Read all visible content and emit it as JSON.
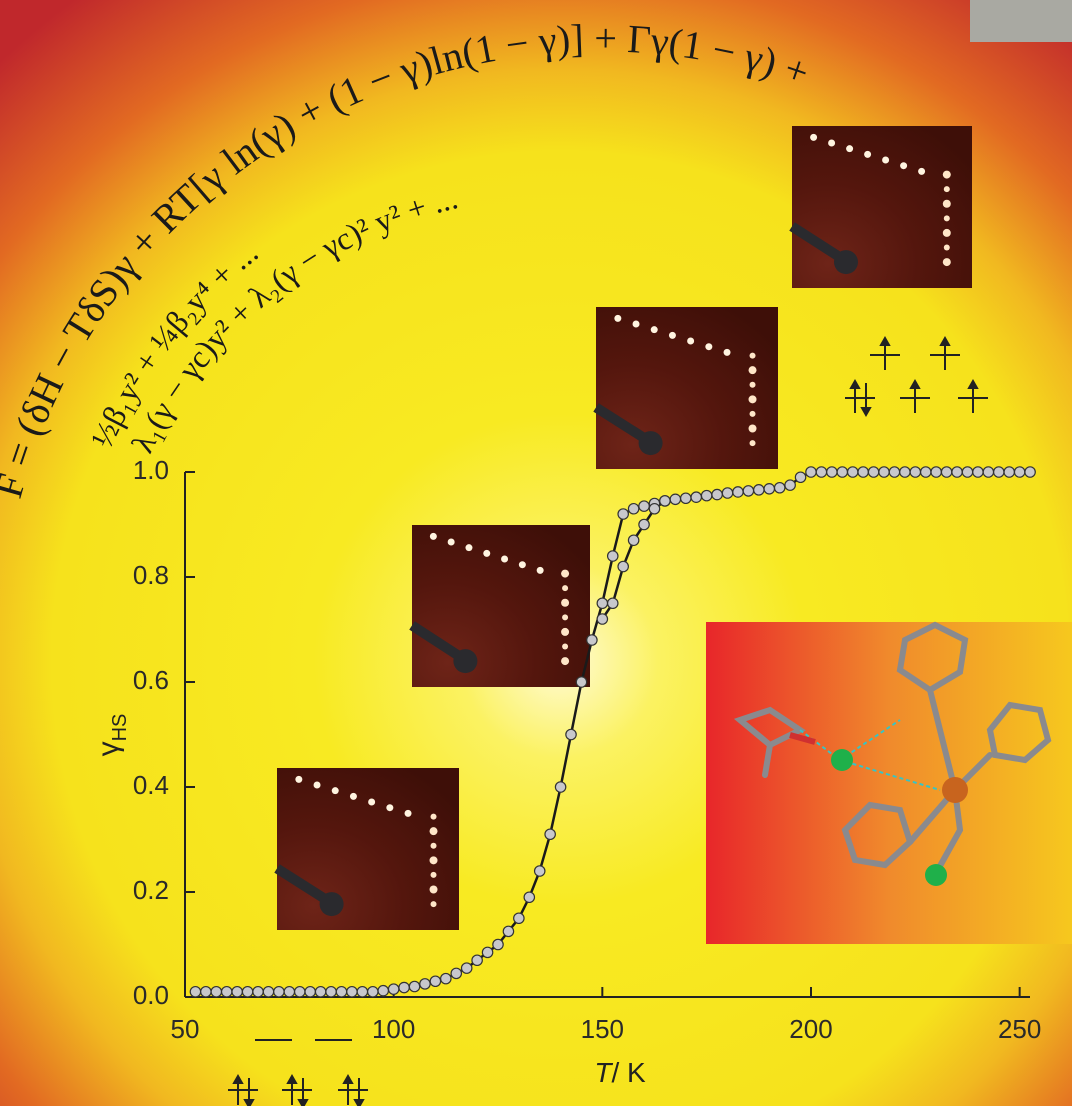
{
  "chart_data": {
    "type": "line",
    "annotations": [
      "F = (δH − TδS)γ + RT[γ ln(γ) + (1 − γ)ln(1 − γ)] + Γγ(1 − γ) +",
      "½β₁y² + ¼β₂y⁴ + ...",
      "λ₁(γ − γc)y² + λ₂(γ − γc)² y² + ..."
    ],
    "xlabel": {
      "symbol": "T",
      "unit": "/ K"
    },
    "ylabel": {
      "symbol": "γ",
      "subscript": "HS"
    },
    "xlim": [
      50,
      252
    ],
    "ylim": [
      0,
      1
    ],
    "xticks": [
      50,
      100,
      150,
      200,
      250
    ],
    "yticks": [
      {
        "value": 0,
        "label": "0.0"
      },
      0.2,
      0.4,
      0.6,
      0.8,
      {
        "value": 1,
        "label": "1.0"
      }
    ],
    "marker_color": "#c8c8cc",
    "x": [
      52.5,
      55,
      57.5,
      60,
      62.5,
      65,
      67.5,
      70,
      72.5,
      75,
      77.5,
      80,
      82.5,
      85,
      87.5,
      90,
      92.5,
      95,
      97.5,
      100,
      102.5,
      105,
      107.5,
      110,
      112.5,
      115,
      117.5,
      120,
      122.5,
      125,
      127.5,
      130,
      132.5,
      135,
      137.5,
      140,
      142.5,
      145,
      147.5,
      150,
      152.5,
      155,
      157.5,
      160,
      162.5,
      165,
      167.5,
      170,
      172.5,
      175,
      177.5,
      180,
      182.5,
      185,
      187.5,
      190,
      192.5,
      195,
      197.5,
      200,
      202.5,
      205,
      207.5,
      210,
      212.5,
      215,
      217.5,
      220,
      222.5,
      225,
      227.5,
      230,
      232.5,
      235,
      237.5,
      240,
      242.5,
      245,
      247.5,
      250,
      252.5
    ],
    "series": [
      {
        "color": "#1a1a1a",
        "values": [
          0.01,
          0.01,
          0.01,
          0.01,
          0.01,
          0.01,
          0.01,
          0.01,
          0.01,
          0.01,
          0.01,
          0.01,
          0.01,
          0.01,
          0.01,
          0.01,
          0.01,
          0.01,
          0.012,
          0.015,
          0.018,
          0.02,
          0.025,
          0.03,
          0.035,
          0.045,
          0.055,
          0.07,
          0.085,
          0.1,
          0.125,
          0.15,
          0.19,
          0.24,
          0.31,
          0.4,
          0.5,
          0.6,
          0.68,
          0.75,
          0.84,
          0.92,
          0.93,
          0.935,
          0.94,
          0.945,
          0.948,
          0.95,
          0.952,
          0.955,
          0.957,
          0.96,
          0.962,
          0.964,
          0.966,
          0.968,
          0.97,
          0.975,
          0.99,
          1.0,
          1.0,
          1.0,
          1.0,
          1.0,
          1.0,
          1.0,
          1.0,
          1.0,
          1.0,
          1.0,
          1.0,
          1.0,
          1.0,
          1.0,
          1.0,
          1.0,
          1.0,
          1.0,
          1.0,
          1.0,
          1.0
        ]
      },
      {
        "color": "#1a1a1a",
        "values": [
          null,
          null,
          null,
          null,
          null,
          null,
          null,
          null,
          null,
          null,
          null,
          null,
          null,
          null,
          null,
          null,
          null,
          null,
          null,
          null,
          null,
          null,
          null,
          null,
          null,
          null,
          null,
          null,
          null,
          null,
          null,
          null,
          null,
          null,
          null,
          null,
          null,
          null,
          null,
          0.72,
          0.75,
          0.82,
          0.87,
          0.9,
          0.93,
          0.945,
          null,
          null,
          null,
          null,
          null,
          null,
          null,
          null,
          null,
          null,
          null,
          null,
          null,
          null,
          null,
          null,
          null,
          null,
          null,
          null,
          null,
          null,
          null,
          null,
          null,
          null,
          null,
          null,
          null,
          null,
          null,
          null,
          null,
          null,
          null
        ]
      }
    ]
  }
}
